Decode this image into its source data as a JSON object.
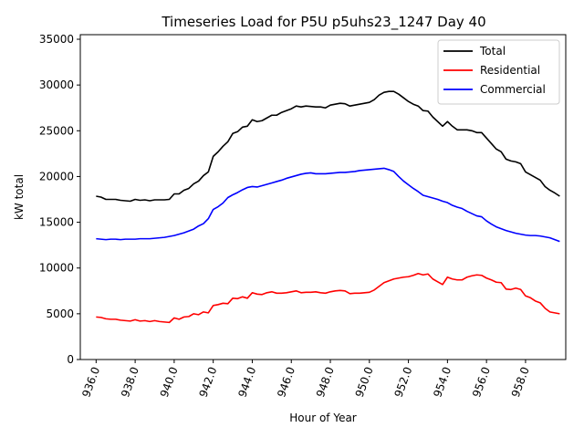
{
  "chart_data": {
    "type": "line",
    "title": "Timeseries Load for P5U p5uhs23_1247  Day 40",
    "xlabel": "Hour of Year",
    "ylabel": "kW total",
    "xlim": [
      935.19,
      960.06
    ],
    "ylim": [
      0,
      35500
    ],
    "xticks": [
      936,
      938,
      940,
      942,
      944,
      946,
      948,
      950,
      952,
      954,
      956,
      958
    ],
    "xtick_labels": [
      "936.0",
      "938.0",
      "940.0",
      "942.0",
      "944.0",
      "946.0",
      "948.0",
      "950.0",
      "952.0",
      "954.0",
      "956.0",
      "958.0"
    ],
    "yticks": [
      0,
      5000,
      10000,
      15000,
      20000,
      25000,
      30000,
      35000
    ],
    "ytick_labels": [
      "0",
      "5000",
      "10000",
      "15000",
      "20000",
      "25000",
      "30000",
      "35000"
    ],
    "legend_position": "top-right",
    "x_start": 936.0,
    "x_step": 0.25,
    "series": [
      {
        "name": "Total",
        "color": "#000000",
        "values": [
          17850,
          17750,
          17500,
          17500,
          17500,
          17400,
          17350,
          17300,
          17500,
          17400,
          17450,
          17350,
          17450,
          17450,
          17450,
          17500,
          18100,
          18100,
          18500,
          18700,
          19200,
          19500,
          20100,
          20500,
          22200,
          22700,
          23300,
          23800,
          24700,
          24900,
          25400,
          25500,
          26200,
          26000,
          26100,
          26400,
          26700,
          26700,
          27000,
          27200,
          27400,
          27700,
          27600,
          27700,
          27650,
          27600,
          27600,
          27500,
          27800,
          27900,
          28000,
          27950,
          27700,
          27800,
          27900,
          28000,
          28100,
          28400,
          28900,
          29200,
          29300,
          29300,
          29000,
          28600,
          28200,
          27900,
          27700,
          27200,
          27150,
          26500,
          26000,
          25500,
          26000,
          25500,
          25100,
          25100,
          25100,
          25000,
          24800,
          24800,
          24200,
          23600,
          23000,
          22700,
          21900,
          21700,
          21600,
          21400,
          20500,
          20200,
          19900,
          19600,
          18900,
          18500,
          18200,
          17850
        ]
      },
      {
        "name": "Residential",
        "color": "#ff0000",
        "values": [
          4650,
          4600,
          4450,
          4400,
          4400,
          4300,
          4250,
          4200,
          4350,
          4200,
          4250,
          4150,
          4250,
          4150,
          4100,
          4050,
          4550,
          4400,
          4650,
          4700,
          5000,
          4900,
          5200,
          5100,
          5900,
          6000,
          6150,
          6100,
          6700,
          6650,
          6850,
          6700,
          7300,
          7150,
          7100,
          7300,
          7400,
          7250,
          7250,
          7300,
          7400,
          7500,
          7300,
          7350,
          7350,
          7400,
          7300,
          7250,
          7400,
          7500,
          7550,
          7500,
          7200,
          7250,
          7250,
          7300,
          7350,
          7600,
          8000,
          8400,
          8600,
          8800,
          8900,
          9000,
          9050,
          9200,
          9400,
          9250,
          9350,
          8800,
          8500,
          8200,
          9000,
          8800,
          8700,
          8700,
          9000,
          9150,
          9250,
          9200,
          8900,
          8700,
          8450,
          8400,
          7700,
          7650,
          7800,
          7650,
          6950,
          6750,
          6400,
          6200,
          5600,
          5200,
          5100,
          5000
        ]
      },
      {
        "name": "Commercial",
        "color": "#0000ff",
        "values": [
          13200,
          13150,
          13100,
          13150,
          13150,
          13100,
          13150,
          13150,
          13150,
          13200,
          13200,
          13200,
          13250,
          13300,
          13350,
          13450,
          13550,
          13700,
          13850,
          14050,
          14250,
          14600,
          14850,
          15400,
          16400,
          16700,
          17100,
          17700,
          18000,
          18250,
          18550,
          18800,
          18900,
          18850,
          19000,
          19150,
          19300,
          19450,
          19600,
          19800,
          19950,
          20100,
          20250,
          20350,
          20400,
          20300,
          20300,
          20300,
          20350,
          20400,
          20450,
          20450,
          20500,
          20550,
          20650,
          20700,
          20750,
          20800,
          20850,
          20900,
          20750,
          20550,
          20000,
          19500,
          19100,
          18700,
          18350,
          17950,
          17800,
          17650,
          17500,
          17300,
          17150,
          16850,
          16650,
          16500,
          16200,
          15950,
          15700,
          15600,
          15150,
          14800,
          14500,
          14300,
          14100,
          13950,
          13800,
          13700,
          13600,
          13550,
          13550,
          13500,
          13400,
          13300,
          13100,
          12900
        ]
      }
    ]
  }
}
